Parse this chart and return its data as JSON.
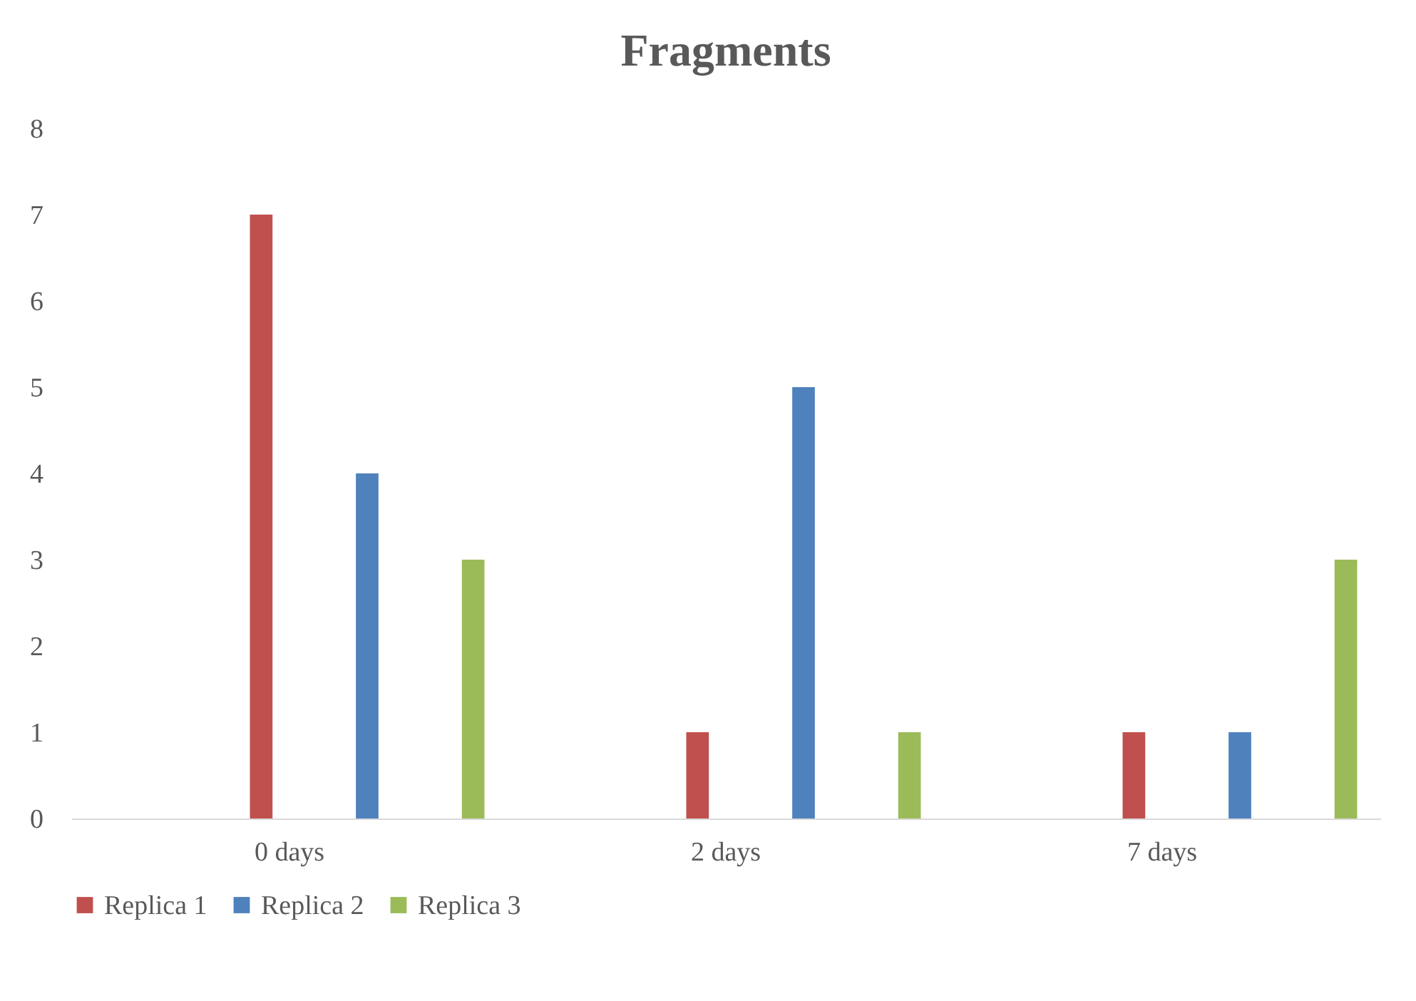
{
  "chart_data": {
    "type": "bar",
    "title": "Fragments",
    "categories": [
      "0 days",
      "2 days",
      "7 days"
    ],
    "series": [
      {
        "name": "Replica 1",
        "color": "#c0504d",
        "values": [
          7,
          1,
          1
        ]
      },
      {
        "name": "Replica 2",
        "color": "#4f81bd",
        "values": [
          4,
          5,
          1
        ]
      },
      {
        "name": "Replica 3",
        "color": "#9bbb59",
        "values": [
          3,
          1,
          3
        ]
      }
    ],
    "ylim": [
      0,
      8
    ],
    "yticks": [
      0,
      1,
      2,
      3,
      4,
      5,
      6,
      7,
      8
    ],
    "grid": false,
    "legend": "bottom"
  }
}
